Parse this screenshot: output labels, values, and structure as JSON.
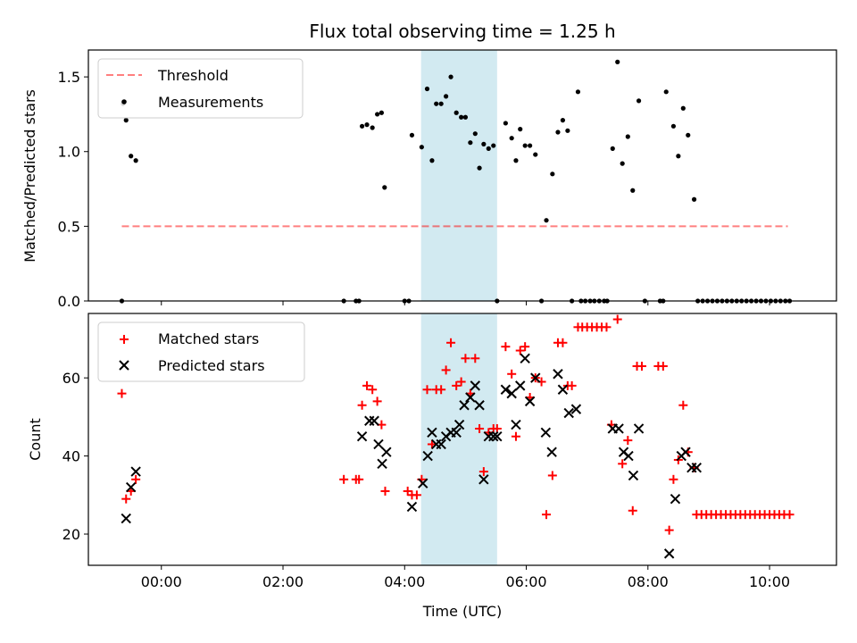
{
  "chart_data": [
    {
      "type": "scatter",
      "title": "Flux total observing time = 1.25 h",
      "ylabel": "Matched/Predicted stars",
      "ylim": [
        0,
        1.68
      ],
      "yticks": [
        0,
        0.5,
        1,
        1.5
      ],
      "ytick_labels": [
        "0.0",
        "0.5",
        "1.0",
        "1.5"
      ],
      "xlim": [
        -1.2,
        11.1
      ],
      "highlight_span": [
        4.27,
        5.52
      ],
      "highlight_color": "#add8e6",
      "legend_position": "upper left",
      "threshold": {
        "name": "Threshold",
        "y": 0.5,
        "x_range": [
          -0.65,
          10.3
        ],
        "color": "#ff0000",
        "style": "dashed"
      },
      "series": [
        {
          "name": "Measurements",
          "color": "#000000",
          "marker": "dot",
          "points": [
            [
              -0.63,
              1.32
            ],
            [
              -0.58,
              1.21
            ],
            [
              -0.5,
              0.97
            ],
            [
              -0.42,
              0.94
            ],
            [
              -0.65,
              0
            ],
            [
              3.0,
              0
            ],
            [
              3.2,
              0
            ],
            [
              3.25,
              0
            ],
            [
              3.3,
              1.17
            ],
            [
              3.38,
              1.18
            ],
            [
              3.47,
              1.16
            ],
            [
              3.55,
              1.25
            ],
            [
              3.62,
              1.26
            ],
            [
              3.67,
              0.76
            ],
            [
              4.0,
              0
            ],
            [
              4.07,
              0
            ],
            [
              4.12,
              1.11
            ],
            [
              4.28,
              1.03
            ],
            [
              4.37,
              1.42
            ],
            [
              4.45,
              0.94
            ],
            [
              4.52,
              1.32
            ],
            [
              4.6,
              1.32
            ],
            [
              4.68,
              1.37
            ],
            [
              4.76,
              1.5
            ],
            [
              4.85,
              1.26
            ],
            [
              4.93,
              1.23
            ],
            [
              5.0,
              1.23
            ],
            [
              5.08,
              1.06
            ],
            [
              5.16,
              1.12
            ],
            [
              5.23,
              0.89
            ],
            [
              5.3,
              1.05
            ],
            [
              5.38,
              1.02
            ],
            [
              5.46,
              1.04
            ],
            [
              5.52,
              0
            ],
            [
              5.66,
              1.19
            ],
            [
              5.76,
              1.09
            ],
            [
              5.83,
              0.94
            ],
            [
              5.9,
              1.15
            ],
            [
              5.98,
              1.04
            ],
            [
              6.06,
              1.04
            ],
            [
              6.15,
              0.98
            ],
            [
              6.25,
              0
            ],
            [
              6.33,
              0.54
            ],
            [
              6.43,
              0.85
            ],
            [
              6.52,
              1.13
            ],
            [
              6.6,
              1.21
            ],
            [
              6.68,
              1.14
            ],
            [
              6.75,
              0
            ],
            [
              6.85,
              1.4
            ],
            [
              6.9,
              0
            ],
            [
              6.97,
              0
            ],
            [
              7.05,
              0
            ],
            [
              7.12,
              0
            ],
            [
              7.2,
              0
            ],
            [
              7.28,
              0
            ],
            [
              7.33,
              0
            ],
            [
              7.42,
              1.02
            ],
            [
              7.5,
              1.6
            ],
            [
              7.58,
              0.92
            ],
            [
              7.67,
              1.1
            ],
            [
              7.75,
              0.74
            ],
            [
              7.85,
              1.34
            ],
            [
              7.95,
              0
            ],
            [
              8.2,
              0
            ],
            [
              8.25,
              0
            ],
            [
              8.3,
              1.4
            ],
            [
              8.42,
              1.17
            ],
            [
              8.5,
              0.97
            ],
            [
              8.58,
              1.29
            ],
            [
              8.66,
              1.11
            ],
            [
              8.76,
              0.68
            ],
            [
              8.82,
              0
            ],
            [
              8.9,
              0
            ],
            [
              8.98,
              0
            ],
            [
              9.06,
              0
            ],
            [
              9.14,
              0
            ],
            [
              9.22,
              0
            ],
            [
              9.3,
              0
            ],
            [
              9.38,
              0
            ],
            [
              9.46,
              0
            ],
            [
              9.54,
              0
            ],
            [
              9.62,
              0
            ],
            [
              9.7,
              0
            ],
            [
              9.78,
              0
            ],
            [
              9.86,
              0
            ],
            [
              9.94,
              0
            ],
            [
              10.02,
              0
            ],
            [
              10.1,
              0
            ],
            [
              10.18,
              0
            ],
            [
              10.26,
              0
            ],
            [
              10.33,
              0
            ]
          ]
        }
      ]
    },
    {
      "type": "scatter",
      "xlabel": "Time (UTC)",
      "ylabel": "Count",
      "ylim": [
        12,
        76.5
      ],
      "yticks": [
        20,
        40,
        60
      ],
      "ytick_labels": [
        "20",
        "40",
        "60"
      ],
      "xlim": [
        -1.2,
        11.1
      ],
      "xticks": [
        0,
        2,
        4,
        6,
        8,
        10
      ],
      "xtick_labels": [
        "00:00",
        "02:00",
        "04:00",
        "06:00",
        "08:00",
        "10:00"
      ],
      "highlight_span": [
        4.27,
        5.52
      ],
      "highlight_color": "#add8e6",
      "legend_position": "upper left",
      "series": [
        {
          "name": "Matched stars",
          "color": "#ff0000",
          "marker": "plus",
          "points": [
            [
              -0.65,
              56
            ],
            [
              -0.58,
              29
            ],
            [
              -0.5,
              31
            ],
            [
              -0.42,
              34
            ],
            [
              3.0,
              34
            ],
            [
              3.2,
              34
            ],
            [
              3.25,
              34
            ],
            [
              3.3,
              53
            ],
            [
              3.38,
              58
            ],
            [
              3.47,
              57
            ],
            [
              3.55,
              54
            ],
            [
              3.62,
              48
            ],
            [
              3.68,
              31
            ],
            [
              4.05,
              31
            ],
            [
              4.12,
              30
            ],
            [
              4.2,
              30
            ],
            [
              4.28,
              34
            ],
            [
              4.37,
              57
            ],
            [
              4.45,
              43
            ],
            [
              4.52,
              57
            ],
            [
              4.6,
              57
            ],
            [
              4.68,
              62
            ],
            [
              4.76,
              69
            ],
            [
              4.85,
              58
            ],
            [
              4.93,
              59
            ],
            [
              5.0,
              65
            ],
            [
              5.08,
              56
            ],
            [
              5.16,
              65
            ],
            [
              5.23,
              47
            ],
            [
              5.3,
              36
            ],
            [
              5.38,
              46
            ],
            [
              5.46,
              47
            ],
            [
              5.52,
              47
            ],
            [
              5.66,
              68
            ],
            [
              5.76,
              61
            ],
            [
              5.83,
              45
            ],
            [
              5.9,
              67
            ],
            [
              5.98,
              68
            ],
            [
              6.06,
              55
            ],
            [
              6.15,
              60
            ],
            [
              6.25,
              59
            ],
            [
              6.33,
              25
            ],
            [
              6.43,
              35
            ],
            [
              6.52,
              69
            ],
            [
              6.6,
              69
            ],
            [
              6.68,
              58
            ],
            [
              6.75,
              58
            ],
            [
              6.85,
              73
            ],
            [
              6.92,
              73
            ],
            [
              7.0,
              73
            ],
            [
              7.08,
              73
            ],
            [
              7.16,
              73
            ],
            [
              7.24,
              73
            ],
            [
              7.32,
              73
            ],
            [
              7.4,
              48
            ],
            [
              7.5,
              75
            ],
            [
              7.58,
              38
            ],
            [
              7.67,
              44
            ],
            [
              7.75,
              26
            ],
            [
              7.82,
              63
            ],
            [
              7.9,
              63
            ],
            [
              8.17,
              63
            ],
            [
              8.25,
              63
            ],
            [
              8.35,
              21
            ],
            [
              8.42,
              34
            ],
            [
              8.5,
              39
            ],
            [
              8.58,
              53
            ],
            [
              8.66,
              41
            ],
            [
              8.76,
              37
            ],
            [
              8.8,
              25
            ],
            [
              8.88,
              25
            ],
            [
              8.96,
              25
            ],
            [
              9.04,
              25
            ],
            [
              9.12,
              25
            ],
            [
              9.2,
              25
            ],
            [
              9.28,
              25
            ],
            [
              9.36,
              25
            ],
            [
              9.44,
              25
            ],
            [
              9.52,
              25
            ],
            [
              9.6,
              25
            ],
            [
              9.68,
              25
            ],
            [
              9.76,
              25
            ],
            [
              9.84,
              25
            ],
            [
              9.92,
              25
            ],
            [
              10.0,
              25
            ],
            [
              10.08,
              25
            ],
            [
              10.16,
              25
            ],
            [
              10.24,
              25
            ],
            [
              10.33,
              25
            ]
          ]
        },
        {
          "name": "Predicted stars",
          "color": "#000000",
          "marker": "x",
          "points": [
            [
              -0.58,
              24
            ],
            [
              -0.5,
              32
            ],
            [
              -0.42,
              36
            ],
            [
              3.3,
              45
            ],
            [
              3.42,
              49
            ],
            [
              3.5,
              49
            ],
            [
              3.57,
              43
            ],
            [
              3.63,
              38
            ],
            [
              3.7,
              41
            ],
            [
              4.12,
              27
            ],
            [
              4.3,
              33
            ],
            [
              4.38,
              40
            ],
            [
              4.45,
              46
            ],
            [
              4.52,
              43
            ],
            [
              4.6,
              43
            ],
            [
              4.68,
              45
            ],
            [
              4.76,
              46
            ],
            [
              4.85,
              46
            ],
            [
              4.9,
              48
            ],
            [
              4.98,
              53
            ],
            [
              5.08,
              55
            ],
            [
              5.16,
              58
            ],
            [
              5.23,
              53
            ],
            [
              5.3,
              34
            ],
            [
              5.38,
              45
            ],
            [
              5.46,
              45
            ],
            [
              5.52,
              45
            ],
            [
              5.66,
              57
            ],
            [
              5.76,
              56
            ],
            [
              5.83,
              48
            ],
            [
              5.9,
              58
            ],
            [
              5.98,
              65
            ],
            [
              6.06,
              54
            ],
            [
              6.15,
              60
            ],
            [
              6.32,
              46
            ],
            [
              6.42,
              41
            ],
            [
              6.52,
              61
            ],
            [
              6.6,
              57
            ],
            [
              6.7,
              51
            ],
            [
              6.82,
              52
            ],
            [
              7.42,
              47
            ],
            [
              7.52,
              47
            ],
            [
              7.6,
              41
            ],
            [
              7.68,
              40
            ],
            [
              7.76,
              35
            ],
            [
              7.85,
              47
            ],
            [
              8.35,
              15
            ],
            [
              8.45,
              29
            ],
            [
              8.55,
              40
            ],
            [
              8.62,
              41
            ],
            [
              8.72,
              37
            ],
            [
              8.8,
              37
            ]
          ]
        }
      ]
    }
  ]
}
